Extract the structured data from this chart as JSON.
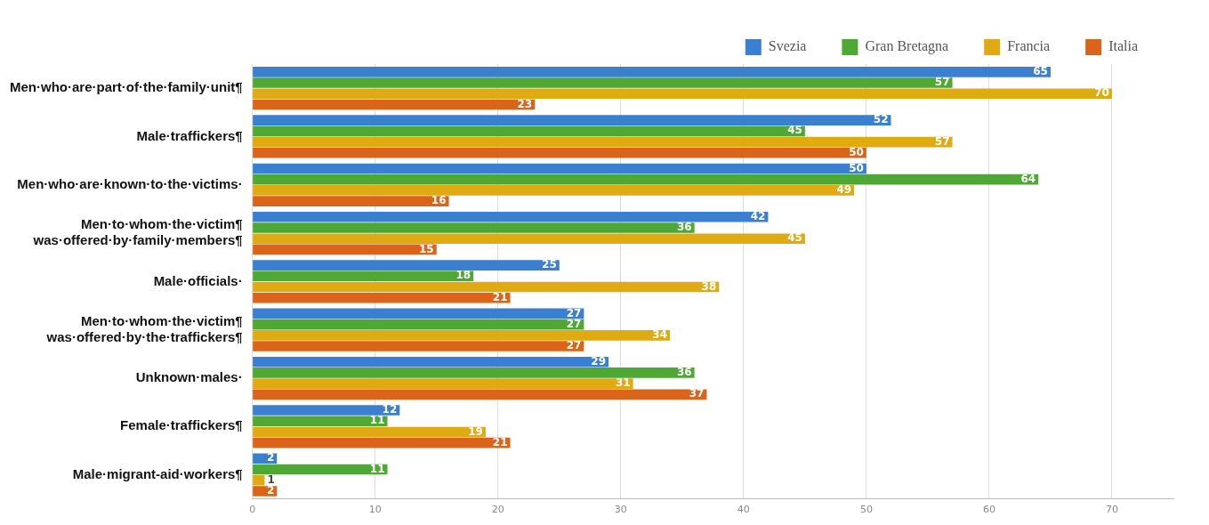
{
  "chart_data": {
    "type": "bar",
    "orientation": "horizontal",
    "categories": [
      "Men·who·are·part·of·the·family·unit¶",
      "Male·traffickers¶",
      "Men·who·are·known·to·the·victims·",
      "Men·to·whom·the·victim¶\nwas·offered·by·family·members¶",
      "Male·officials·",
      "Men·to·whom·the·victim¶\nwas·offered·by·the·traffickers¶",
      "Unknown·males·",
      "Female·traffickers¶",
      "Male·migrant-aid·workers¶"
    ],
    "series": [
      {
        "name": "Svezia",
        "color": "#3a7fd0",
        "values": [
          65,
          52,
          50,
          42,
          25,
          27,
          29,
          12,
          2
        ]
      },
      {
        "name": "Gran Bretagna",
        "color": "#4fa834",
        "values": [
          57,
          45,
          64,
          36,
          18,
          27,
          36,
          11,
          11
        ]
      },
      {
        "name": "Francia",
        "color": "#e0aa12",
        "values": [
          70,
          57,
          49,
          45,
          38,
          34,
          31,
          19,
          1
        ]
      },
      {
        "name": "Italia",
        "color": "#d9641a",
        "values": [
          23,
          50,
          16,
          15,
          21,
          27,
          37,
          21,
          2
        ]
      }
    ],
    "xlim": [
      0,
      75
    ],
    "xticks": [
      0,
      10,
      20,
      30,
      40,
      50,
      60,
      70
    ],
    "grid": "x",
    "legend": "top right",
    "data_labels": true
  }
}
